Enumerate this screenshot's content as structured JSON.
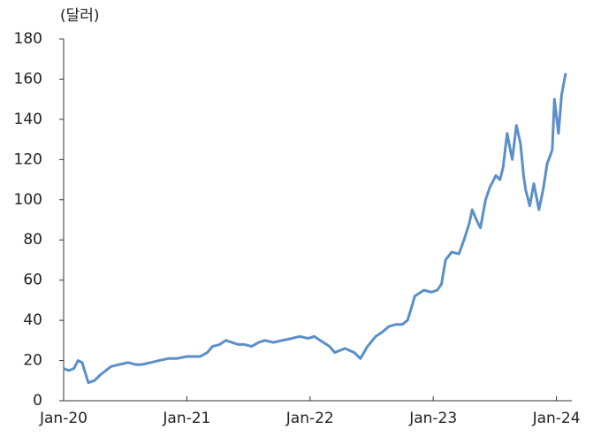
{
  "chart_data": {
    "type": "line",
    "y_label": "(달러)",
    "x": [
      0,
      0.5,
      1,
      1.4,
      1.8,
      2.4,
      3,
      3.6,
      4.6,
      5.4,
      6.3,
      7,
      7.6,
      8.5,
      9.3,
      10.2,
      11,
      12,
      12.7,
      13.3,
      14,
      14.5,
      15.2,
      15.8,
      16.4,
      17,
      17.6,
      18.3,
      19,
      19.6,
      20.4,
      21.3,
      22.2,
      23,
      23.8,
      24.4,
      25.3,
      25.9,
      26.4,
      27.4,
      28.3,
      28.9,
      29.6,
      30.4,
      31,
      31.7,
      32.4,
      33,
      33.5,
      33.8,
      34.2,
      35.1,
      35.8,
      36.4,
      36.8,
      37.2,
      37.8,
      38.5,
      39,
      39.5,
      39.8,
      40.2,
      40.6,
      41.1,
      41.5,
      42.1,
      42.5,
      42.8,
      43.2,
      43.5,
      43.7,
      44.1,
      44.5,
      44.8,
      45,
      45.4,
      45.8,
      46.3,
      46.7,
      47.1,
      47.4,
      47.6,
      47.8,
      48.2,
      48.5,
      48.9
    ],
    "series": [
      {
        "name": null,
        "color": "#5b8fc9",
        "values": [
          16,
          15,
          16,
          20,
          19,
          9,
          10,
          13,
          17,
          18,
          19,
          18,
          18,
          19,
          20,
          21,
          21,
          22,
          22,
          22,
          24,
          27,
          28,
          30,
          29,
          28,
          28,
          27,
          29,
          30,
          29,
          30,
          31,
          32,
          31,
          32,
          29,
          27,
          24,
          26,
          24,
          21,
          27,
          32,
          34,
          37,
          38,
          38,
          40,
          45,
          52,
          55,
          54,
          55,
          58,
          70,
          74,
          73,
          80,
          88,
          95,
          90,
          86,
          100,
          106,
          112,
          110,
          116,
          133,
          125,
          120,
          137,
          128,
          112,
          105,
          97,
          108,
          95,
          105,
          118,
          122,
          125,
          150,
          133,
          152,
          163
        ]
      }
    ],
    "xlim": [
      0,
      49.5
    ],
    "ylim": [
      0,
      180
    ],
    "xticks": [
      {
        "value": 0,
        "label": "Jan-20"
      },
      {
        "value": 12,
        "label": "Jan-21"
      },
      {
        "value": 24,
        "label": "Jan-22"
      },
      {
        "value": 36,
        "label": "Jan-23"
      },
      {
        "value": 48,
        "label": "Jan-24"
      }
    ],
    "yticks": [
      0,
      20,
      40,
      60,
      80,
      100,
      120,
      140,
      160,
      180
    ]
  }
}
